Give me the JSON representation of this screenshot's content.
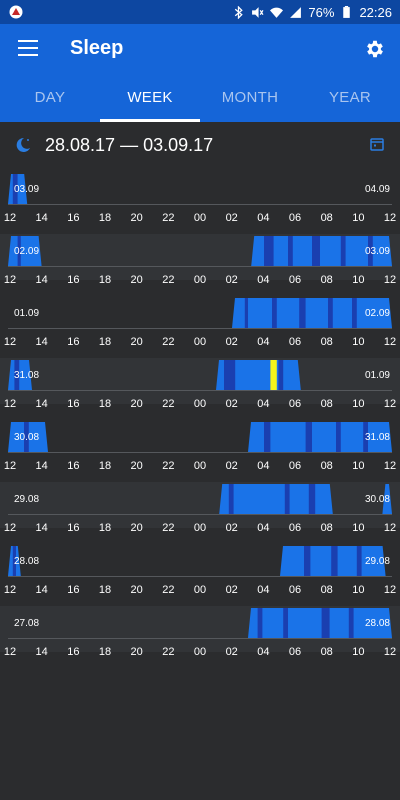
{
  "status_bar": {
    "battery": "76%",
    "time": "22:26"
  },
  "app_bar": {
    "title": "Sleep"
  },
  "tabs": [
    {
      "label": "DAY",
      "active": false
    },
    {
      "label": "WEEK",
      "active": true
    },
    {
      "label": "MONTH",
      "active": false
    },
    {
      "label": "YEAR",
      "active": false
    }
  ],
  "range": {
    "label": "28.08.17 — 03.09.17"
  },
  "hour_labels": [
    "12",
    "14",
    "16",
    "18",
    "20",
    "22",
    "00",
    "02",
    "04",
    "06",
    "08",
    "10",
    "12"
  ],
  "colors": {
    "sleep_deep": "#1a3fb0",
    "sleep_light": "#1a73e8",
    "awake": "#f4f41a",
    "row_alt": "#323437",
    "row": "#2b2c2e"
  },
  "days": [
    {
      "start_label": "03.09",
      "end_label": "04.09",
      "segments": [
        [
          12.0,
          13.2
        ]
      ],
      "deep": [
        [
          12.3,
          12.6
        ]
      ],
      "awake": []
    },
    {
      "start_label": "02.09",
      "end_label": "03.09",
      "segments": [
        [
          12.0,
          14.1
        ],
        [
          3.2,
          12.0
        ]
      ],
      "deep": [
        [
          12.6,
          12.8
        ],
        [
          4.0,
          4.6
        ],
        [
          5.5,
          5.8
        ],
        [
          7.0,
          7.5
        ],
        [
          8.8,
          9.1
        ],
        [
          10.5,
          10.8
        ]
      ],
      "awake": []
    },
    {
      "start_label": "01.09",
      "end_label": "02.09",
      "segments": [
        [
          2.0,
          12.0
        ]
      ],
      "deep": [
        [
          2.8,
          3.0
        ],
        [
          4.5,
          4.8
        ],
        [
          6.2,
          6.6
        ],
        [
          8.0,
          8.3
        ],
        [
          9.5,
          9.8
        ]
      ],
      "awake": []
    },
    {
      "start_label": "31.08",
      "end_label": "01.09",
      "segments": [
        [
          12.0,
          13.5
        ],
        [
          1.0,
          6.3
        ]
      ],
      "deep": [
        [
          12.4,
          12.7
        ],
        [
          1.5,
          2.2
        ],
        [
          4.9,
          5.2
        ]
      ],
      "awake": [
        [
          4.4,
          4.8
        ]
      ]
    },
    {
      "start_label": "30.08",
      "end_label": "31.08",
      "segments": [
        [
          12.0,
          14.5
        ],
        [
          3.0,
          12.0
        ]
      ],
      "deep": [
        [
          13.0,
          13.3
        ],
        [
          4.0,
          4.4
        ],
        [
          6.6,
          7.0
        ],
        [
          8.5,
          8.8
        ],
        [
          10.2,
          10.5
        ]
      ],
      "awake": []
    },
    {
      "start_label": "29.08",
      "end_label": "30.08",
      "segments": [
        [
          1.2,
          8.3
        ],
        [
          11.4,
          12.0
        ]
      ],
      "deep": [
        [
          1.8,
          2.1
        ],
        [
          5.3,
          5.6
        ],
        [
          6.8,
          7.2
        ]
      ],
      "awake": []
    },
    {
      "start_label": "28.08",
      "end_label": "29.08",
      "segments": [
        [
          12.0,
          12.8
        ],
        [
          5.0,
          11.6
        ]
      ],
      "deep": [
        [
          12.3,
          12.5
        ],
        [
          6.5,
          6.9
        ],
        [
          8.2,
          8.6
        ],
        [
          9.8,
          10.1
        ]
      ],
      "awake": []
    },
    {
      "start_label": "27.08",
      "end_label": "28.08",
      "segments": [
        [
          3.0,
          12.0
        ]
      ],
      "deep": [
        [
          3.6,
          3.9
        ],
        [
          5.2,
          5.5
        ],
        [
          7.6,
          8.1
        ],
        [
          9.3,
          9.6
        ]
      ],
      "awake": []
    }
  ]
}
